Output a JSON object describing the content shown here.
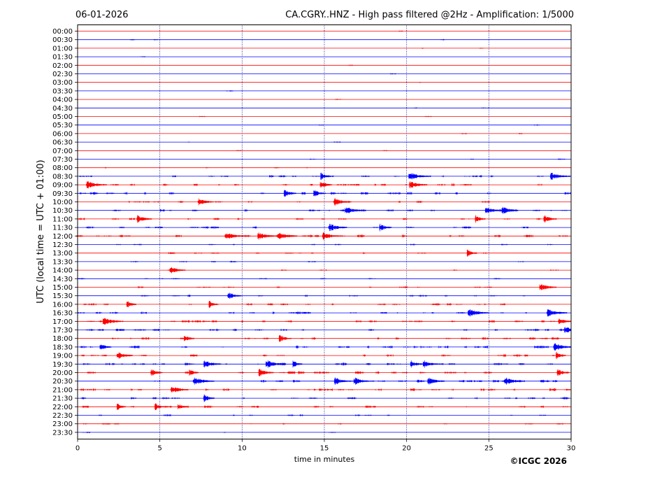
{
  "header": {
    "date": "06-01-2026",
    "title": "CA.CGRY..HNZ - High pass filtered @2Hz - Amplification: 1/5000"
  },
  "footer": {
    "copyright": "©ICGC 2026"
  },
  "colors": {
    "trace_a": "#ff0000",
    "trace_b": "#0000ff",
    "grid": "#000080",
    "frame": "#000000"
  },
  "chart_data": {
    "type": "line",
    "title": "CA.CGRY..HNZ - High pass filtered @2Hz - Amplification: 1/5000",
    "xlabel": "time in minutes",
    "ylabel": "UTC (local time = UTC + 01:00)",
    "xlim": [
      0,
      30
    ],
    "x_ticks": [
      0,
      5,
      10,
      15,
      20,
      25,
      30
    ],
    "grid": "vertical dotted lines at 5-minute ticks",
    "row_labels": [
      "00:00",
      "00:30",
      "01:00",
      "01:30",
      "02:00",
      "02:30",
      "03:00",
      "03:30",
      "04:00",
      "04:30",
      "05:00",
      "05:30",
      "06:00",
      "06:30",
      "07:00",
      "07:30",
      "08:00",
      "08:30",
      "09:00",
      "09:30",
      "10:00",
      "10:30",
      "11:00",
      "11:30",
      "12:00",
      "12:30",
      "13:00",
      "13:30",
      "14:00",
      "14:30",
      "15:00",
      "15:30",
      "16:00",
      "16:30",
      "17:00",
      "17:30",
      "18:00",
      "18:30",
      "19:00",
      "19:30",
      "20:00",
      "20:30",
      "21:00",
      "21:30",
      "22:00",
      "22:30",
      "23:00",
      "23:30"
    ],
    "trace_activity": [
      0.02,
      0.05,
      0.03,
      0.02,
      0.02,
      0.02,
      0.02,
      0.02,
      0.02,
      0.03,
      0.03,
      0.03,
      0.03,
      0.03,
      0.04,
      0.05,
      0.08,
      0.35,
      0.4,
      0.45,
      0.25,
      0.4,
      0.3,
      0.28,
      0.45,
      0.15,
      0.2,
      0.12,
      0.12,
      0.15,
      0.2,
      0.25,
      0.35,
      0.35,
      0.45,
      0.4,
      0.4,
      0.45,
      0.4,
      0.5,
      0.45,
      0.5,
      0.45,
      0.35,
      0.35,
      0.2,
      0.15,
      0.05
    ],
    "events": [
      {
        "row": "08:30",
        "x": [
          14.9,
          20.4,
          29.0
        ]
      },
      {
        "row": "09:00",
        "x": [
          0.8,
          14.9,
          20.4
        ]
      },
      {
        "row": "09:30",
        "x": [
          12.7,
          14.5
        ]
      },
      {
        "row": "10:00",
        "x": [
          7.5,
          15.8
        ]
      },
      {
        "row": "10:30",
        "x": [
          16.5,
          25.0,
          26.0
        ]
      },
      {
        "row": "11:00",
        "x": [
          3.8,
          24.3,
          28.5
        ]
      },
      {
        "row": "11:30",
        "x": [
          15.5,
          18.5
        ]
      },
      {
        "row": "12:00",
        "x": [
          9.2,
          11.2,
          12.4,
          15.1
        ]
      },
      {
        "row": "13:00",
        "x": [
          23.8
        ]
      },
      {
        "row": "14:00",
        "x": [
          5.8
        ]
      },
      {
        "row": "15:00",
        "x": [
          28.3
        ]
      },
      {
        "row": "15:30",
        "x": [
          9.3
        ]
      },
      {
        "row": "16:00",
        "x": [
          3.1,
          8.1
        ]
      },
      {
        "row": "16:30",
        "x": [
          24.0,
          28.8
        ]
      },
      {
        "row": "17:00",
        "x": [
          1.8,
          29.4
        ]
      },
      {
        "row": "17:30",
        "x": [
          29.8
        ]
      },
      {
        "row": "18:00",
        "x": [
          6.6,
          12.4
        ]
      },
      {
        "row": "18:30",
        "x": [
          1.5,
          29.2
        ]
      },
      {
        "row": "19:00",
        "x": [
          2.6,
          29.2
        ]
      },
      {
        "row": "19:30",
        "x": [
          7.9,
          11.7,
          13.2,
          20.4,
          21.2
        ]
      },
      {
        "row": "20:00",
        "x": [
          4.6,
          6.9,
          11.2,
          29.3
        ]
      },
      {
        "row": "20:30",
        "x": [
          7.3,
          15.8,
          17.0,
          21.5,
          26.2
        ]
      },
      {
        "row": "21:00",
        "x": [
          5.9
        ]
      },
      {
        "row": "21:30",
        "x": [
          7.8
        ]
      },
      {
        "row": "22:00",
        "x": [
          2.5,
          4.8,
          6.2
        ]
      }
    ]
  }
}
